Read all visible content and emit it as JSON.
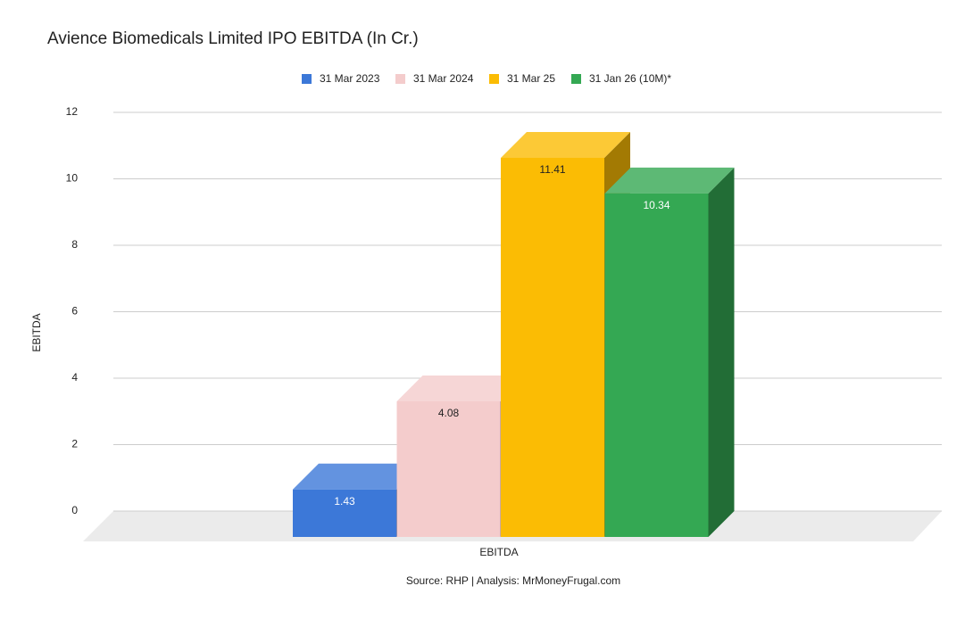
{
  "chart_data": {
    "type": "bar3d",
    "title": "Avience Biomedicals Limited IPO EBITDA (In Cr.)",
    "categories": [
      "EBITDA"
    ],
    "x_label": "EBITDA",
    "y_label": "EBITDA",
    "source": "Source: RHP | Analysis: MrMoneyFrugal.com",
    "series": [
      {
        "name": "31 Mar 2023",
        "color": "#3c78d8",
        "values": [
          1.43
        ]
      },
      {
        "name": "31 Mar 2024",
        "color": "#f4cccc",
        "values": [
          4.08
        ]
      },
      {
        "name": "31 Mar 25",
        "color": "#fbbc04",
        "values": [
          11.41
        ]
      },
      {
        "name": "31 Jan 26 (10M)*",
        "color": "#34a853",
        "values": [
          10.34
        ]
      }
    ],
    "ylim": [
      0,
      12
    ],
    "yticks": [
      0,
      2,
      4,
      6,
      8,
      10,
      12
    ],
    "grid": true,
    "legend": "top"
  }
}
